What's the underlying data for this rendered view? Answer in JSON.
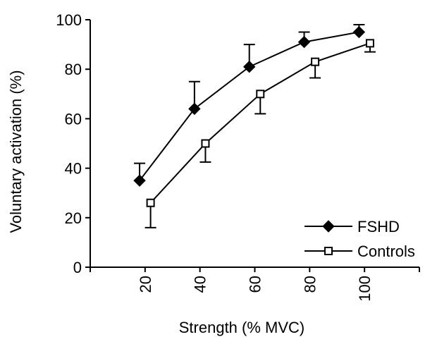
{
  "chart_data": {
    "type": "line",
    "xlabel": "Strength (% MVC)",
    "ylabel": "Voluntary activation (%)",
    "x_ticks": [
      "20",
      "40",
      "60",
      "80",
      "100"
    ],
    "y_ticks": [
      "0",
      "20",
      "40",
      "60",
      "80",
      "100"
    ],
    "xlim": [
      0,
      120
    ],
    "ylim": [
      0,
      100
    ],
    "grid": false,
    "legend_position": "bottom-right",
    "series": [
      {
        "name": "FSHD",
        "marker": "filled-diamond",
        "x": [
          18,
          38,
          58,
          78,
          98
        ],
        "y": [
          35,
          64,
          81,
          91,
          95
        ],
        "error_upper": [
          42,
          75,
          90,
          95,
          98
        ]
      },
      {
        "name": "Controls",
        "marker": "open-square",
        "x": [
          22,
          42,
          62,
          82,
          102
        ],
        "y": [
          26,
          50,
          70,
          83,
          90.5
        ],
        "error_lower": [
          16,
          42.5,
          62,
          76.5,
          87
        ]
      }
    ]
  }
}
